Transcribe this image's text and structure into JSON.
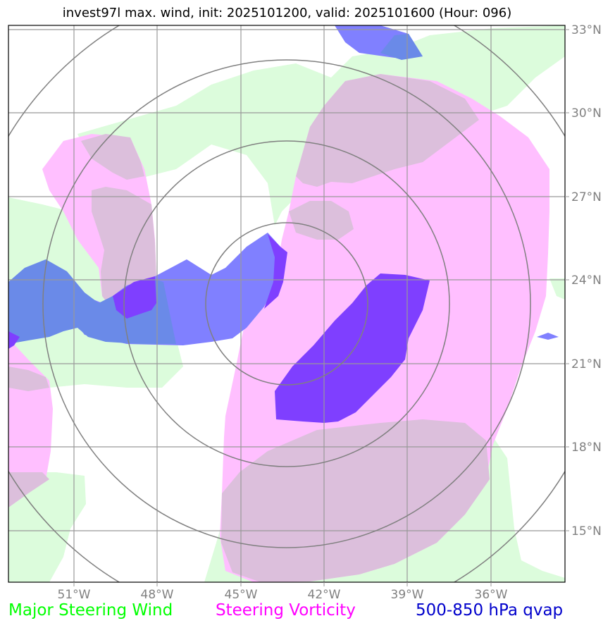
{
  "title": "invest97l max. wind, init: 2025101200, valid: 2025101600 (Hour: 096)",
  "map": {
    "longitude_ticks": [
      "51°W",
      "48°W",
      "45°W",
      "42°W",
      "39°W",
      "36°W"
    ],
    "latitude_ticks": [
      "33°N",
      "30°N",
      "27°N",
      "24°N",
      "21°N",
      "18°N",
      "15°N"
    ],
    "grid": true,
    "range_rings_count": 4
  },
  "legend": [
    {
      "label": "Major Steering Wind",
      "color": "#00ff00"
    },
    {
      "label": "Steering Vorticity",
      "color": "#ff00ff"
    },
    {
      "label": "500-850 hPa qvap",
      "color": "#0000cc"
    }
  ],
  "colors": {
    "steering_wind_fill": "#dcfcdc",
    "vorticity_fill": "#ffbfff",
    "overlap_fill": "#dcbfdc",
    "qvap_light": "#8080ff",
    "qvap_mid": "#6a8ae8",
    "qvap_dark": "#7f3fff",
    "grid": "#999999",
    "rings": "#808080"
  }
}
